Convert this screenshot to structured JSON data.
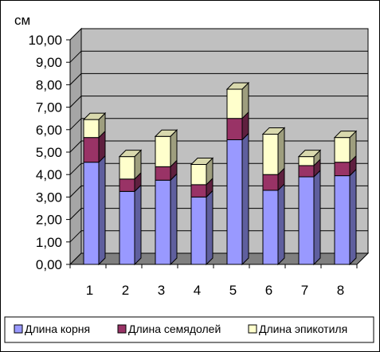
{
  "chart_data": {
    "type": "bar",
    "stacked": true,
    "three_d": true,
    "unit_label": "см",
    "categories": [
      "1",
      "2",
      "3",
      "4",
      "5",
      "6",
      "7",
      "8"
    ],
    "series": [
      {
        "name": "Длина корня",
        "color": "#9999FF",
        "values": [
          4.55,
          3.25,
          3.75,
          3.0,
          5.55,
          3.3,
          3.9,
          3.95
        ]
      },
      {
        "name": "Длина семядолей",
        "color": "#993366",
        "values": [
          1.1,
          0.55,
          0.6,
          0.55,
          0.95,
          0.7,
          0.5,
          0.6
        ]
      },
      {
        "name": "Длина эпикотиля",
        "color": "#FFFFCC",
        "values": [
          0.8,
          1.0,
          1.35,
          0.9,
          1.3,
          1.8,
          0.4,
          1.1
        ]
      }
    ],
    "y_ticks": [
      "0,00",
      "1,00",
      "2,00",
      "3,00",
      "4,00",
      "5,00",
      "6,00",
      "7,00",
      "8,00",
      "9,00",
      "10,00"
    ],
    "ylim": [
      0,
      10
    ],
    "grid": true,
    "legend_position": "bottom",
    "wall_color": "#C0C0C0",
    "floor_color": "#808080"
  }
}
